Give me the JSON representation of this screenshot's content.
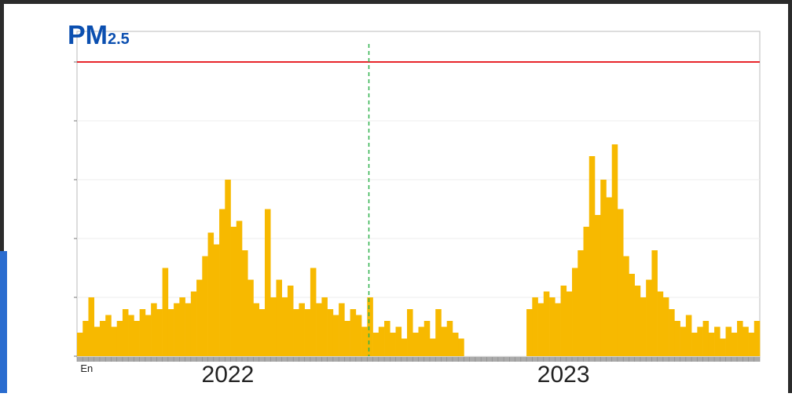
{
  "chart_data": {
    "type": "bar",
    "title": "PM",
    "title_sub": "2.5",
    "color": "#f7b900",
    "threshold": 5,
    "threshold_color": "#e8252a",
    "marker_x": 51.3,
    "marker_color": "#2db04b",
    "xlim": [
      0,
      120
    ],
    "ylim": [
      0,
      5.52
    ],
    "yticks": [
      0,
      1,
      2,
      3,
      4,
      5
    ],
    "grid": true,
    "x_labels": [
      {
        "value": 0.6,
        "label": "En"
      },
      {
        "value": 26.5,
        "label": "2022"
      },
      {
        "value": 85.5,
        "label": "2023"
      }
    ],
    "x": [
      0,
      1,
      2,
      3,
      4,
      5,
      6,
      7,
      8,
      9,
      10,
      11,
      12,
      13,
      14,
      15,
      16,
      17,
      18,
      19,
      20,
      21,
      22,
      23,
      24,
      25,
      26,
      27,
      28,
      29,
      30,
      31,
      32,
      33,
      34,
      35,
      36,
      37,
      38,
      39,
      40,
      41,
      42,
      43,
      44,
      45,
      46,
      47,
      48,
      49,
      50,
      51,
      52,
      53,
      54,
      55,
      56,
      57,
      58,
      59,
      60,
      61,
      62,
      63,
      64,
      65,
      66,
      67,
      68,
      69,
      70,
      71,
      72,
      73,
      74,
      75,
      76,
      77,
      78,
      79,
      80,
      81,
      82,
      83,
      84,
      85,
      86,
      87,
      88,
      89,
      90,
      91,
      92,
      93,
      94,
      95,
      96,
      97,
      98,
      99,
      100,
      101,
      102,
      103,
      104,
      105,
      106,
      107,
      108,
      109,
      110,
      111,
      112,
      113,
      114,
      115,
      116,
      117,
      118,
      119
    ],
    "values": [
      0.4,
      0.6,
      1.0,
      0.5,
      0.6,
      0.7,
      0.5,
      0.6,
      0.8,
      0.7,
      0.6,
      0.8,
      0.7,
      0.9,
      0.8,
      1.5,
      0.8,
      0.9,
      1.0,
      0.9,
      1.1,
      1.3,
      1.7,
      2.1,
      1.9,
      2.5,
      3.0,
      2.2,
      2.3,
      1.8,
      1.3,
      0.9,
      0.8,
      2.5,
      1.0,
      1.3,
      1.0,
      1.2,
      0.8,
      0.9,
      0.8,
      1.5,
      0.9,
      1.0,
      0.8,
      0.7,
      0.9,
      0.6,
      0.8,
      0.7,
      0.5,
      1.0,
      0.4,
      0.5,
      0.6,
      0.4,
      0.5,
      0.3,
      0.8,
      0.4,
      0.5,
      0.6,
      0.3,
      0.8,
      0.5,
      0.6,
      0.4,
      0.3,
      null,
      null,
      null,
      null,
      null,
      null,
      null,
      null,
      null,
      null,
      null,
      0.8,
      1.0,
      0.9,
      1.1,
      1.0,
      0.9,
      1.2,
      1.1,
      1.5,
      1.8,
      2.2,
      3.4,
      2.4,
      3.0,
      2.7,
      3.6,
      2.5,
      1.7,
      1.4,
      1.2,
      1.0,
      1.3,
      1.8,
      1.1,
      1.0,
      0.8,
      0.6,
      0.5,
      0.7,
      0.4,
      0.5,
      0.6,
      0.4,
      0.5,
      0.3,
      0.5,
      0.4,
      0.6,
      0.5,
      0.4,
      0.6
    ]
  }
}
